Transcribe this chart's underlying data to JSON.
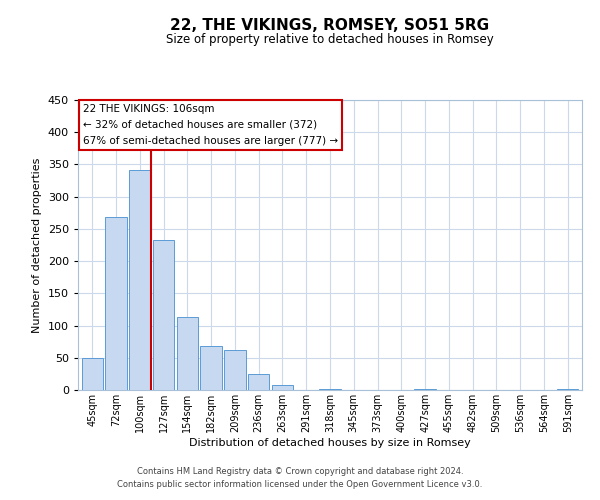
{
  "title": "22, THE VIKINGS, ROMSEY, SO51 5RG",
  "subtitle": "Size of property relative to detached houses in Romsey",
  "xlabel": "Distribution of detached houses by size in Romsey",
  "ylabel": "Number of detached properties",
  "bar_labels": [
    "45sqm",
    "72sqm",
    "100sqm",
    "127sqm",
    "154sqm",
    "182sqm",
    "209sqm",
    "236sqm",
    "263sqm",
    "291sqm",
    "318sqm",
    "345sqm",
    "373sqm",
    "400sqm",
    "427sqm",
    "455sqm",
    "482sqm",
    "509sqm",
    "536sqm",
    "564sqm",
    "591sqm"
  ],
  "bar_values": [
    50,
    268,
    342,
    232,
    113,
    68,
    62,
    25,
    7,
    0,
    2,
    0,
    0,
    0,
    1,
    0,
    0,
    0,
    0,
    0,
    2
  ],
  "bar_color": "#c6d9f0",
  "bar_edge_color": "#5b9bd5",
  "vline_color": "#cc0000",
  "ylim": [
    0,
    450
  ],
  "yticks": [
    0,
    50,
    100,
    150,
    200,
    250,
    300,
    350,
    400,
    450
  ],
  "annotation_title": "22 THE VIKINGS: 106sqm",
  "annotation_line1": "← 32% of detached houses are smaller (372)",
  "annotation_line2": "67% of semi-detached houses are larger (777) →",
  "annotation_box_color": "#ffffff",
  "annotation_box_edge": "#cc0000",
  "footer_line1": "Contains HM Land Registry data © Crown copyright and database right 2024.",
  "footer_line2": "Contains public sector information licensed under the Open Government Licence v3.0.",
  "background_color": "#ffffff",
  "grid_color": "#ccd9ea"
}
